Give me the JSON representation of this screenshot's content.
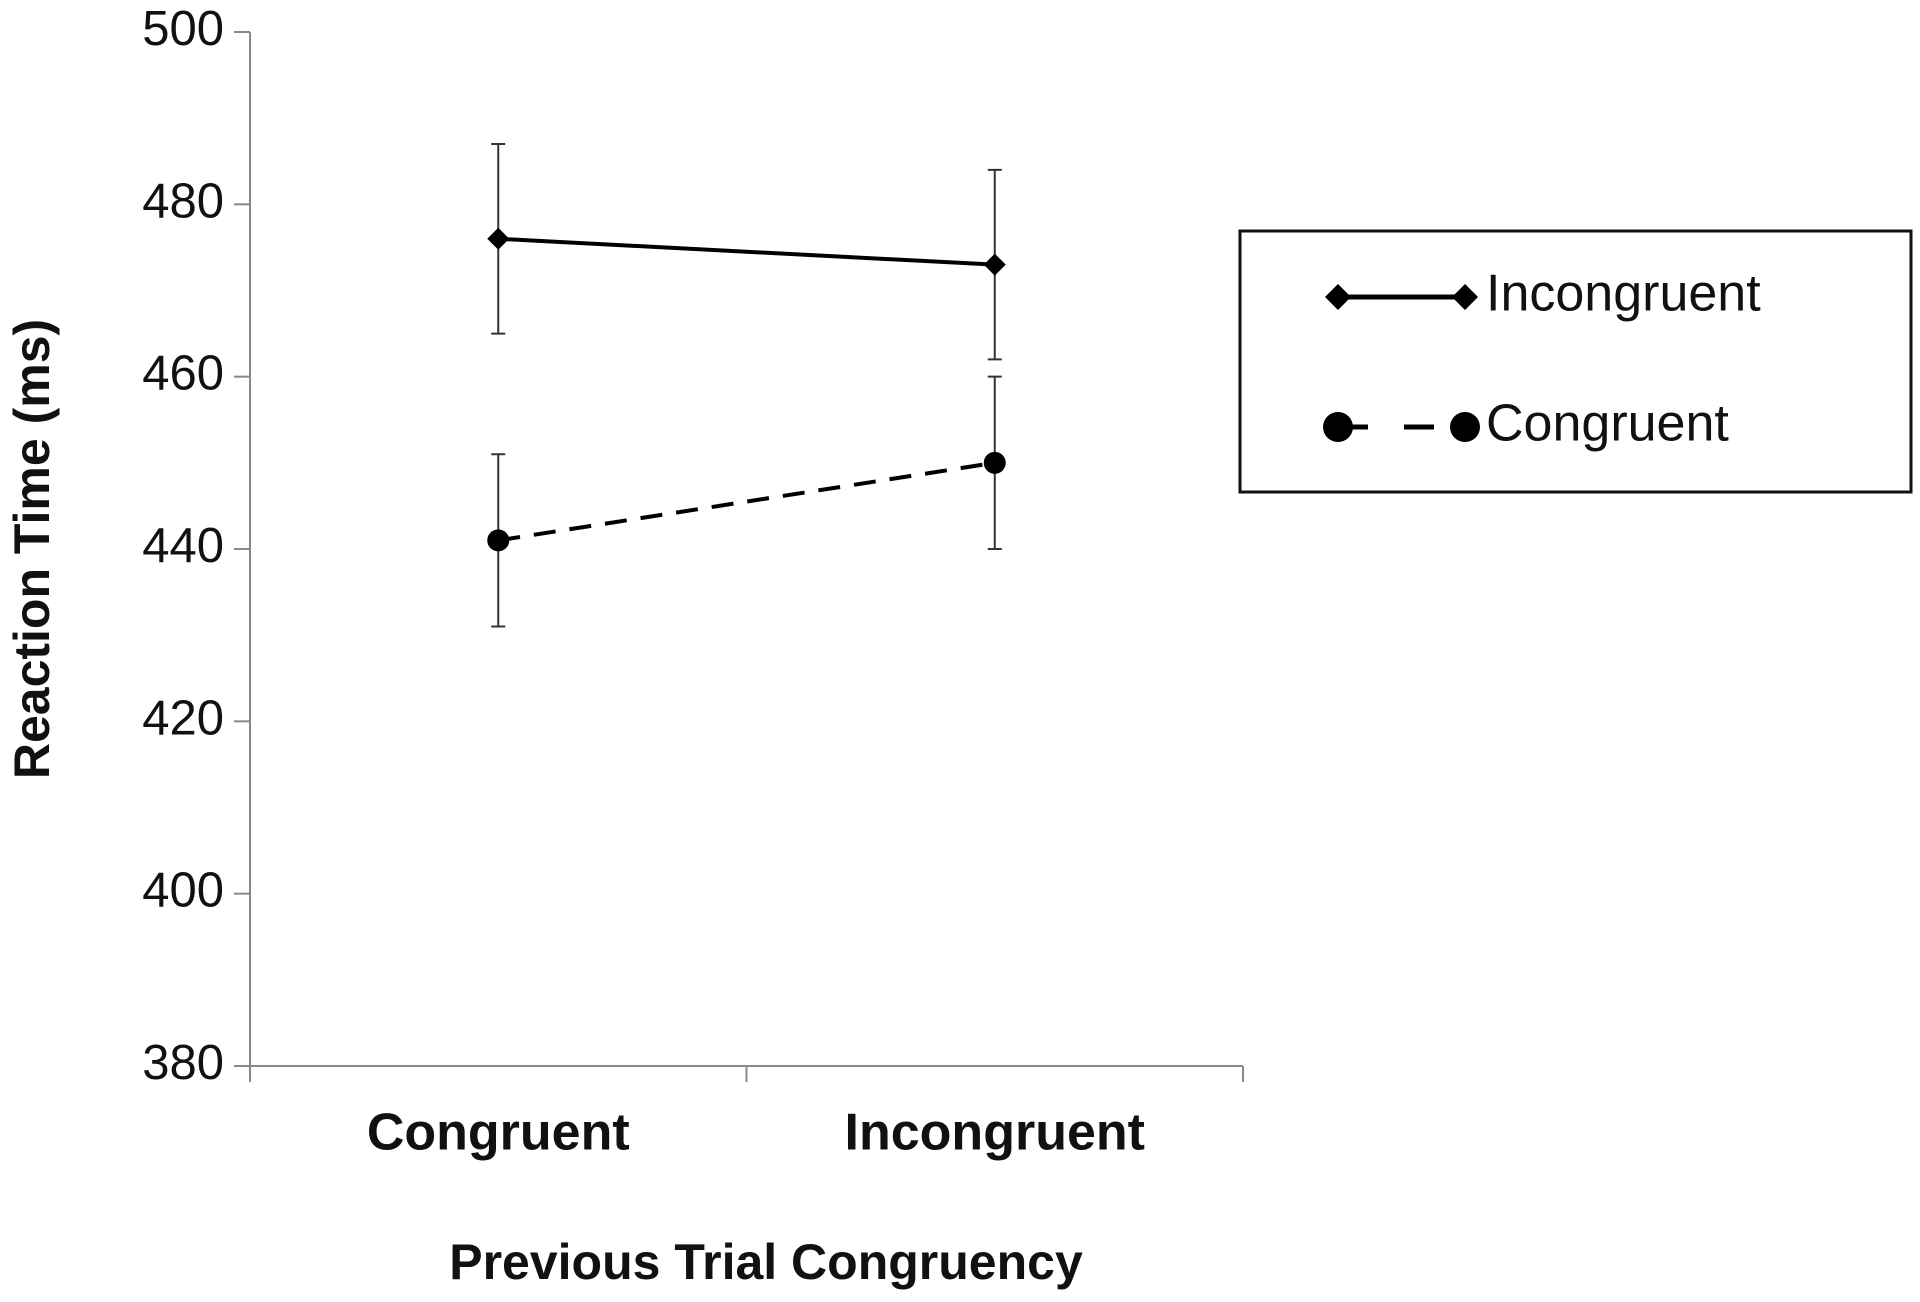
{
  "chart_data": {
    "type": "line",
    "x_label": "Previous Trial Congruency",
    "y_label": "Reaction Time (ms)",
    "categories": [
      "Congruent",
      "Incongruent"
    ],
    "series": [
      {
        "name": "Incongruent",
        "color": "#000000",
        "marker": "diamond",
        "dashed": false,
        "values": [
          476,
          473
        ],
        "errors": [
          11,
          11
        ]
      },
      {
        "name": "Congruent",
        "color": "#000000",
        "marker": "circle",
        "dashed": true,
        "values": [
          441,
          450
        ],
        "errors": [
          10,
          10
        ]
      }
    ],
    "ylim": [
      380,
      500
    ],
    "yticks": [
      380,
      400,
      420,
      440,
      460,
      480,
      500
    ],
    "legend": "right"
  }
}
